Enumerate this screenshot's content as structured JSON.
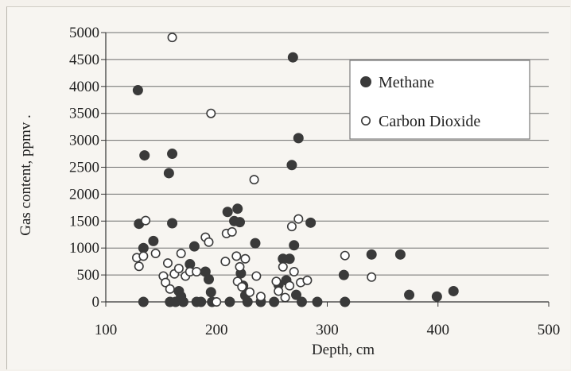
{
  "chart_data": {
    "type": "scatter",
    "title": "",
    "xlabel": "Depth, cm",
    "ylabel": "Gas content, ppmv .",
    "xlim": [
      100,
      500
    ],
    "ylim": [
      0,
      5000
    ],
    "x_ticks": [
      "100",
      "200",
      "300",
      "400",
      "500"
    ],
    "y_ticks": [
      "0",
      "500",
      "1000",
      "1500",
      "2000",
      "2500",
      "3000",
      "3500",
      "4000",
      "4500",
      "5000"
    ],
    "grid": "horizontal",
    "legend_position": "top-right",
    "series": [
      {
        "name": "Methane",
        "marker": "filled-circle",
        "color": "#3a3a3a",
        "points": [
          [
            129,
            3930
          ],
          [
            130,
            1450
          ],
          [
            134,
            1000
          ],
          [
            134,
            0
          ],
          [
            135,
            2720
          ],
          [
            143,
            1130
          ],
          [
            157,
            2390
          ],
          [
            160,
            2750
          ],
          [
            160,
            1460
          ],
          [
            158,
            0
          ],
          [
            163,
            0
          ],
          [
            166,
            200
          ],
          [
            168,
            100
          ],
          [
            170,
            0
          ],
          [
            176,
            700
          ],
          [
            180,
            1030
          ],
          [
            182,
            0
          ],
          [
            186,
            0
          ],
          [
            190,
            560
          ],
          [
            193,
            420
          ],
          [
            195,
            180
          ],
          [
            196,
            0
          ],
          [
            210,
            1670
          ],
          [
            212,
            0
          ],
          [
            216,
            1500
          ],
          [
            219,
            1730
          ],
          [
            221,
            1480
          ],
          [
            222,
            530
          ],
          [
            224,
            300
          ],
          [
            226,
            120
          ],
          [
            228,
            0
          ],
          [
            235,
            1090
          ],
          [
            240,
            0
          ],
          [
            252,
            0
          ],
          [
            256,
            320
          ],
          [
            260,
            800
          ],
          [
            263,
            400
          ],
          [
            266,
            800
          ],
          [
            268,
            2540
          ],
          [
            269,
            4540
          ],
          [
            270,
            1050
          ],
          [
            272,
            130
          ],
          [
            274,
            3040
          ],
          [
            277,
            0
          ],
          [
            285,
            1470
          ],
          [
            291,
            0
          ],
          [
            315,
            500
          ],
          [
            316,
            0
          ],
          [
            340,
            880
          ],
          [
            366,
            880
          ],
          [
            374,
            130
          ],
          [
            399,
            100
          ],
          [
            414,
            200
          ]
        ]
      },
      {
        "name": "Carbon Dioxide",
        "marker": "open-circle",
        "color": "#3a3a3a",
        "points": [
          [
            128,
            820
          ],
          [
            130,
            660
          ],
          [
            134,
            850
          ],
          [
            136,
            1510
          ],
          [
            145,
            900
          ],
          [
            152,
            480
          ],
          [
            154,
            360
          ],
          [
            156,
            720
          ],
          [
            158,
            240
          ],
          [
            160,
            4910
          ],
          [
            162,
            520
          ],
          [
            166,
            620
          ],
          [
            168,
            900
          ],
          [
            172,
            480
          ],
          [
            176,
            560
          ],
          [
            182,
            560
          ],
          [
            190,
            1200
          ],
          [
            193,
            1110
          ],
          [
            195,
            3500
          ],
          [
            200,
            0
          ],
          [
            208,
            750
          ],
          [
            209,
            1270
          ],
          [
            214,
            1300
          ],
          [
            218,
            850
          ],
          [
            219,
            380
          ],
          [
            221,
            650
          ],
          [
            223,
            280
          ],
          [
            226,
            800
          ],
          [
            230,
            180
          ],
          [
            234,
            2270
          ],
          [
            236,
            480
          ],
          [
            240,
            100
          ],
          [
            254,
            380
          ],
          [
            256,
            200
          ],
          [
            260,
            650
          ],
          [
            262,
            80
          ],
          [
            266,
            300
          ],
          [
            268,
            1400
          ],
          [
            270,
            560
          ],
          [
            274,
            1540
          ],
          [
            276,
            360
          ],
          [
            282,
            400
          ],
          [
            316,
            860
          ],
          [
            340,
            460
          ]
        ]
      }
    ]
  }
}
